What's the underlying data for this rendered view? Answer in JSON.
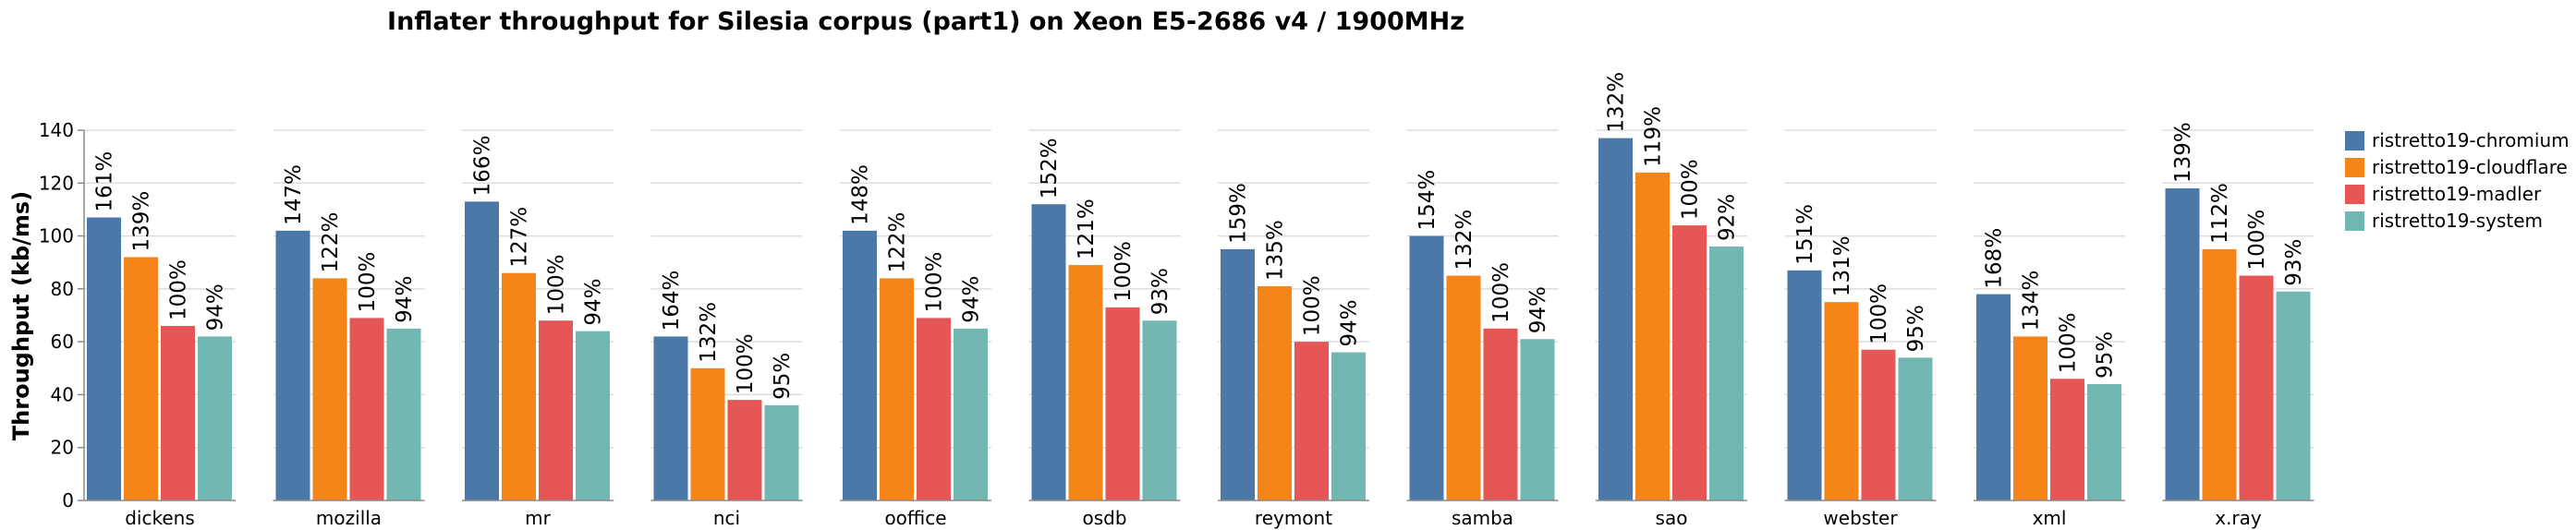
{
  "chart_data": {
    "type": "bar",
    "title": "Inflater throughput for Silesia corpus (part1) on Xeon E5-2686 v4 / 1900MHz",
    "ylabel": "Throughput (kb/ms)",
    "xlabel": "",
    "ylim": [
      0,
      140
    ],
    "yticks": [
      0,
      20,
      40,
      60,
      80,
      100,
      120,
      140
    ],
    "grid": true,
    "legend_position": "right",
    "categories": [
      "dickens",
      "mozilla",
      "mr",
      "nci",
      "ooffice",
      "osdb",
      "reymont",
      "samba",
      "sao",
      "webster",
      "xml",
      "x.ray"
    ],
    "series": [
      {
        "name": "ristretto19-chromium",
        "color": "#4c78a8",
        "values": [
          107,
          102,
          113,
          62,
          102,
          112,
          95,
          100,
          137,
          87,
          78,
          118
        ],
        "labels": [
          "161%",
          "147%",
          "166%",
          "164%",
          "148%",
          "152%",
          "159%",
          "154%",
          "132%",
          "151%",
          "168%",
          "139%"
        ]
      },
      {
        "name": "ristretto19-cloudflare",
        "color": "#f58518",
        "values": [
          92,
          84,
          86,
          50,
          84,
          89,
          81,
          85,
          124,
          75,
          62,
          95
        ],
        "labels": [
          "139%",
          "122%",
          "127%",
          "132%",
          "122%",
          "121%",
          "135%",
          "132%",
          "119%",
          "131%",
          "134%",
          "112%"
        ]
      },
      {
        "name": "ristretto19-madler",
        "color": "#e45756",
        "values": [
          66,
          69,
          68,
          38,
          69,
          73,
          60,
          65,
          104,
          57,
          46,
          85
        ],
        "labels": [
          "100%",
          "100%",
          "100%",
          "100%",
          "100%",
          "100%",
          "100%",
          "100%",
          "100%",
          "100%",
          "100%",
          "100%"
        ]
      },
      {
        "name": "ristretto19-system",
        "color": "#72b7b2",
        "values": [
          62,
          65,
          64,
          36,
          65,
          68,
          56,
          61,
          96,
          54,
          44,
          79
        ],
        "labels": [
          "94%",
          "94%",
          "94%",
          "95%",
          "94%",
          "93%",
          "94%",
          "94%",
          "92%",
          "95%",
          "95%",
          "93%"
        ]
      }
    ]
  }
}
